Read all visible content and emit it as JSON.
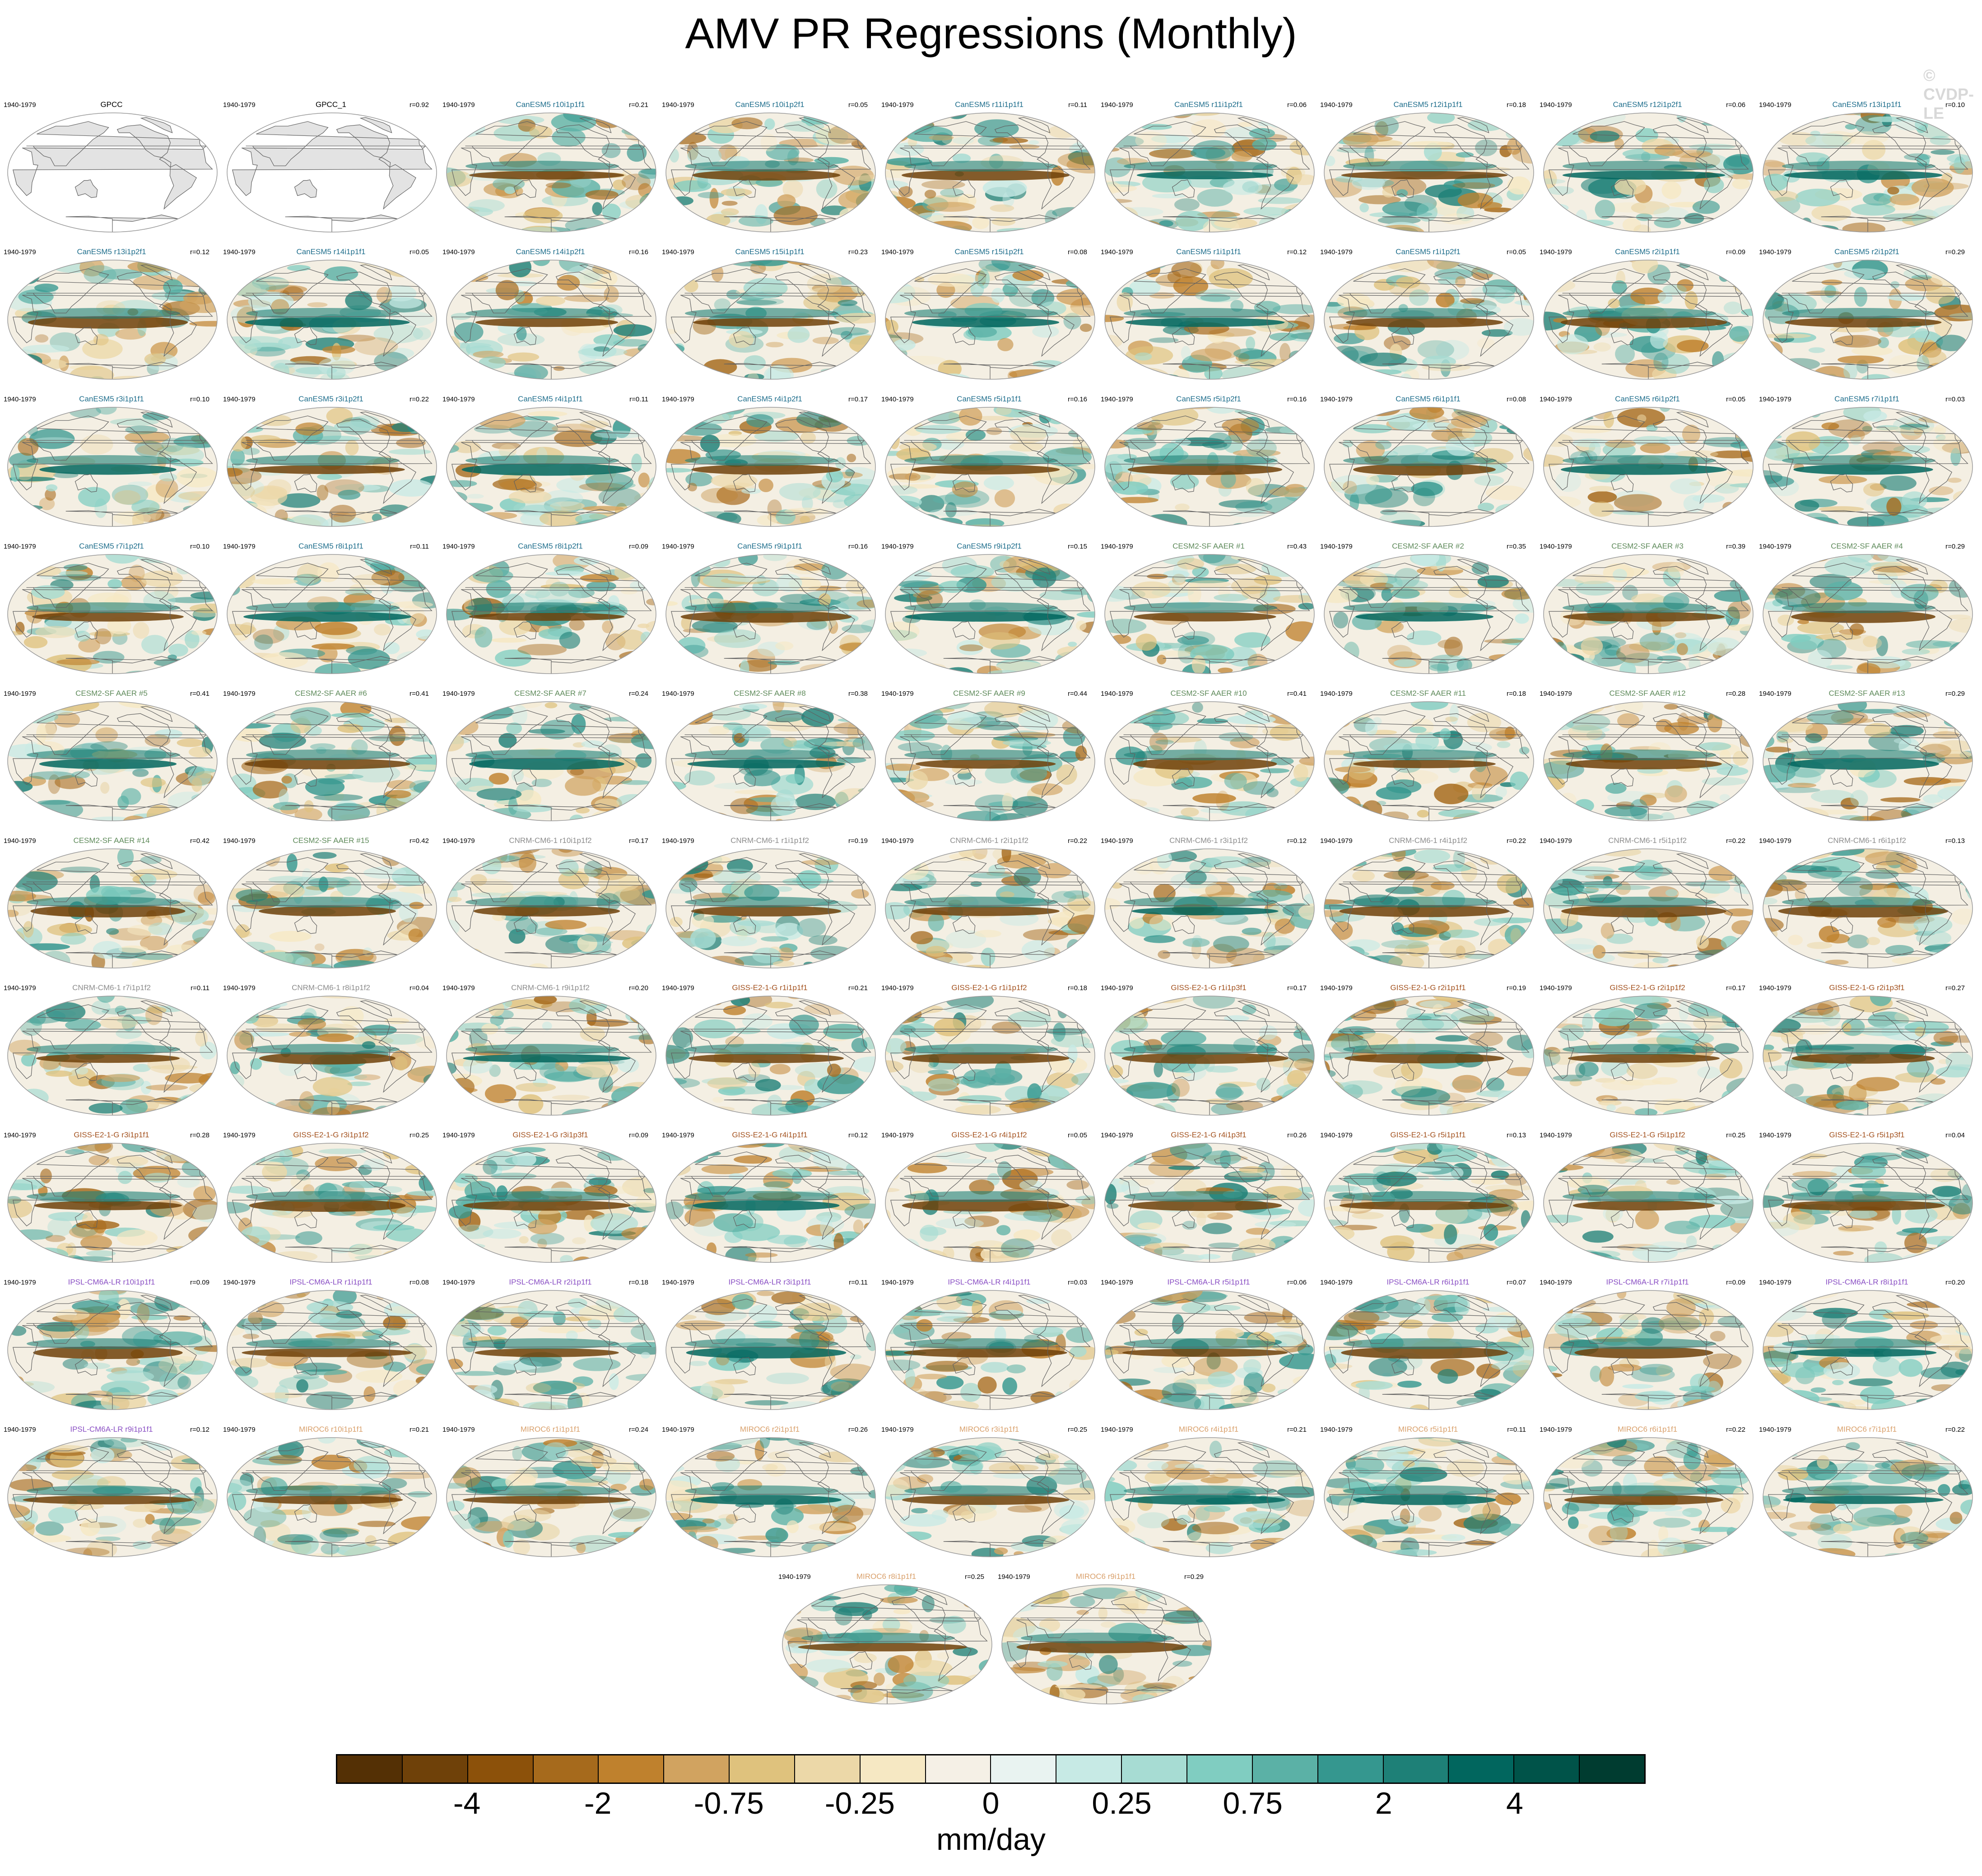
{
  "title": "AMV PR Regressions (Monthly)",
  "watermark": "© CVDP-LE",
  "period": "1940-1979",
  "panels": [
    {
      "name": "GPCC",
      "r": "",
      "group": "obs",
      "obs": true
    },
    {
      "name": "GPCC_1",
      "r": "r=0.92",
      "group": "obs",
      "obs": true
    },
    {
      "name": "CanESM5 r10i1p1f1",
      "r": "r=0.21",
      "group": "canesm5"
    },
    {
      "name": "CanESM5 r10i1p2f1",
      "r": "r=0.05",
      "group": "canesm5"
    },
    {
      "name": "CanESM5 r11i1p1f1",
      "r": "r=0.11",
      "group": "canesm5"
    },
    {
      "name": "CanESM5 r11i1p2f1",
      "r": "r=0.06",
      "group": "canesm5"
    },
    {
      "name": "CanESM5 r12i1p1f1",
      "r": "r=0.18",
      "group": "canesm5"
    },
    {
      "name": "CanESM5 r12i1p2f1",
      "r": "r=0.06",
      "group": "canesm5"
    },
    {
      "name": "CanESM5 r13i1p1f1",
      "r": "r=0.10",
      "group": "canesm5"
    },
    {
      "name": "CanESM5 r13i1p2f1",
      "r": "r=0.12",
      "group": "canesm5"
    },
    {
      "name": "CanESM5 r14i1p1f1",
      "r": "r=0.05",
      "group": "canesm5"
    },
    {
      "name": "CanESM5 r14i1p2f1",
      "r": "r=0.16",
      "group": "canesm5"
    },
    {
      "name": "CanESM5 r15i1p1f1",
      "r": "r=0.23",
      "group": "canesm5"
    },
    {
      "name": "CanESM5 r15i1p2f1",
      "r": "r=0.08",
      "group": "canesm5"
    },
    {
      "name": "CanESM5 r1i1p1f1",
      "r": "r=0.12",
      "group": "canesm5"
    },
    {
      "name": "CanESM5 r1i1p2f1",
      "r": "r=0.05",
      "group": "canesm5"
    },
    {
      "name": "CanESM5 r2i1p1f1",
      "r": "r=0.09",
      "group": "canesm5"
    },
    {
      "name": "CanESM5 r2i1p2f1",
      "r": "r=0.29",
      "group": "canesm5"
    },
    {
      "name": "CanESM5 r3i1p1f1",
      "r": "r=0.10",
      "group": "canesm5"
    },
    {
      "name": "CanESM5 r3i1p2f1",
      "r": "r=0.22",
      "group": "canesm5"
    },
    {
      "name": "CanESM5 r4i1p1f1",
      "r": "r=0.11",
      "group": "canesm5"
    },
    {
      "name": "CanESM5 r4i1p2f1",
      "r": "r=0.17",
      "group": "canesm5"
    },
    {
      "name": "CanESM5 r5i1p1f1",
      "r": "r=0.16",
      "group": "canesm5"
    },
    {
      "name": "CanESM5 r5i1p2f1",
      "r": "r=0.16",
      "group": "canesm5"
    },
    {
      "name": "CanESM5 r6i1p1f1",
      "r": "r=0.08",
      "group": "canesm5"
    },
    {
      "name": "CanESM5 r6i1p2f1",
      "r": "r=0.05",
      "group": "canesm5"
    },
    {
      "name": "CanESM5 r7i1p1f1",
      "r": "r=0.03",
      "group": "canesm5"
    },
    {
      "name": "CanESM5 r7i1p2f1",
      "r": "r=0.10",
      "group": "canesm5"
    },
    {
      "name": "CanESM5 r8i1p1f1",
      "r": "r=0.11",
      "group": "canesm5"
    },
    {
      "name": "CanESM5 r8i1p2f1",
      "r": "r=0.09",
      "group": "canesm5"
    },
    {
      "name": "CanESM5 r9i1p1f1",
      "r": "r=0.16",
      "group": "canesm5"
    },
    {
      "name": "CanESM5 r9i1p2f1",
      "r": "r=0.15",
      "group": "canesm5"
    },
    {
      "name": "CESM2-SF AAER #1",
      "r": "r=0.43",
      "group": "cesm2"
    },
    {
      "name": "CESM2-SF AAER #2",
      "r": "r=0.35",
      "group": "cesm2"
    },
    {
      "name": "CESM2-SF AAER #3",
      "r": "r=0.39",
      "group": "cesm2"
    },
    {
      "name": "CESM2-SF AAER #4",
      "r": "r=0.29",
      "group": "cesm2"
    },
    {
      "name": "CESM2-SF AAER #5",
      "r": "r=0.41",
      "group": "cesm2"
    },
    {
      "name": "CESM2-SF AAER #6",
      "r": "r=0.41",
      "group": "cesm2"
    },
    {
      "name": "CESM2-SF AAER #7",
      "r": "r=0.24",
      "group": "cesm2"
    },
    {
      "name": "CESM2-SF AAER #8",
      "r": "r=0.38",
      "group": "cesm2"
    },
    {
      "name": "CESM2-SF AAER #9",
      "r": "r=0.44",
      "group": "cesm2"
    },
    {
      "name": "CESM2-SF AAER #10",
      "r": "r=0.41",
      "group": "cesm2"
    },
    {
      "name": "CESM2-SF AAER #11",
      "r": "r=0.18",
      "group": "cesm2"
    },
    {
      "name": "CESM2-SF AAER #12",
      "r": "r=0.28",
      "group": "cesm2"
    },
    {
      "name": "CESM2-SF AAER #13",
      "r": "r=0.29",
      "group": "cesm2"
    },
    {
      "name": "CESM2-SF AAER #14",
      "r": "r=0.42",
      "group": "cesm2"
    },
    {
      "name": "CESM2-SF AAER #15",
      "r": "r=0.42",
      "group": "cesm2"
    },
    {
      "name": "CNRM-CM6-1 r10i1p1f2",
      "r": "r=0.17",
      "group": "cnrm"
    },
    {
      "name": "CNRM-CM6-1 r1i1p1f2",
      "r": "r=0.19",
      "group": "cnrm"
    },
    {
      "name": "CNRM-CM6-1 r2i1p1f2",
      "r": "r=0.22",
      "group": "cnrm"
    },
    {
      "name": "CNRM-CM6-1 r3i1p1f2",
      "r": "r=0.12",
      "group": "cnrm"
    },
    {
      "name": "CNRM-CM6-1 r4i1p1f2",
      "r": "r=0.22",
      "group": "cnrm"
    },
    {
      "name": "CNRM-CM6-1 r5i1p1f2",
      "r": "r=0.22",
      "group": "cnrm"
    },
    {
      "name": "CNRM-CM6-1 r6i1p1f2",
      "r": "r=0.13",
      "group": "cnrm"
    },
    {
      "name": "CNRM-CM6-1 r7i1p1f2",
      "r": "r=0.11",
      "group": "cnrm"
    },
    {
      "name": "CNRM-CM6-1 r8i1p1f2",
      "r": "r=0.04",
      "group": "cnrm"
    },
    {
      "name": "CNRM-CM6-1 r9i1p1f2",
      "r": "r=0.20",
      "group": "cnrm"
    },
    {
      "name": "GISS-E2-1-G r1i1p1f1",
      "r": "r=0.21",
      "group": "giss"
    },
    {
      "name": "GISS-E2-1-G r1i1p1f2",
      "r": "r=0.18",
      "group": "giss"
    },
    {
      "name": "GISS-E2-1-G r1i1p3f1",
      "r": "r=0.17",
      "group": "giss"
    },
    {
      "name": "GISS-E2-1-G r2i1p1f1",
      "r": "r=0.19",
      "group": "giss"
    },
    {
      "name": "GISS-E2-1-G r2i1p1f2",
      "r": "r=0.17",
      "group": "giss"
    },
    {
      "name": "GISS-E2-1-G r2i1p3f1",
      "r": "r=0.27",
      "group": "giss"
    },
    {
      "name": "GISS-E2-1-G r3i1p1f1",
      "r": "r=0.28",
      "group": "giss"
    },
    {
      "name": "GISS-E2-1-G r3i1p1f2",
      "r": "r=0.25",
      "group": "giss"
    },
    {
      "name": "GISS-E2-1-G r3i1p3f1",
      "r": "r=0.09",
      "group": "giss"
    },
    {
      "name": "GISS-E2-1-G r4i1p1f1",
      "r": "r=0.12",
      "group": "giss"
    },
    {
      "name": "GISS-E2-1-G r4i1p1f2",
      "r": "r=0.05",
      "group": "giss"
    },
    {
      "name": "GISS-E2-1-G r4i1p3f1",
      "r": "r=0.26",
      "group": "giss"
    },
    {
      "name": "GISS-E2-1-G r5i1p1f1",
      "r": "r=0.13",
      "group": "giss"
    },
    {
      "name": "GISS-E2-1-G r5i1p1f2",
      "r": "r=0.25",
      "group": "giss"
    },
    {
      "name": "GISS-E2-1-G r5i1p3f1",
      "r": "r=0.04",
      "group": "giss"
    },
    {
      "name": "IPSL-CM6A-LR r10i1p1f1",
      "r": "r=0.09",
      "group": "ipsl"
    },
    {
      "name": "IPSL-CM6A-LR r1i1p1f1",
      "r": "r=0.08",
      "group": "ipsl"
    },
    {
      "name": "IPSL-CM6A-LR r2i1p1f1",
      "r": "r=0.18",
      "group": "ipsl"
    },
    {
      "name": "IPSL-CM6A-LR r3i1p1f1",
      "r": "r=0.11",
      "group": "ipsl"
    },
    {
      "name": "IPSL-CM6A-LR r4i1p1f1",
      "r": "r=0.03",
      "group": "ipsl"
    },
    {
      "name": "IPSL-CM6A-LR r5i1p1f1",
      "r": "r=0.06",
      "group": "ipsl"
    },
    {
      "name": "IPSL-CM6A-LR r6i1p1f1",
      "r": "r=0.07",
      "group": "ipsl"
    },
    {
      "name": "IPSL-CM6A-LR r7i1p1f1",
      "r": "r=0.09",
      "group": "ipsl"
    },
    {
      "name": "IPSL-CM6A-LR r8i1p1f1",
      "r": "r=0.20",
      "group": "ipsl"
    },
    {
      "name": "IPSL-CM6A-LR r9i1p1f1",
      "r": "r=0.12",
      "group": "ipsl"
    },
    {
      "name": "MIROC6 r10i1p1f1",
      "r": "r=0.21",
      "group": "miroc6"
    },
    {
      "name": "MIROC6 r1i1p1f1",
      "r": "r=0.24",
      "group": "miroc6"
    },
    {
      "name": "MIROC6 r2i1p1f1",
      "r": "r=0.26",
      "group": "miroc6"
    },
    {
      "name": "MIROC6 r3i1p1f1",
      "r": "r=0.25",
      "group": "miroc6"
    },
    {
      "name": "MIROC6 r4i1p1f1",
      "r": "r=0.21",
      "group": "miroc6"
    },
    {
      "name": "MIROC6 r5i1p1f1",
      "r": "r=0.11",
      "group": "miroc6"
    },
    {
      "name": "MIROC6 r6i1p1f1",
      "r": "r=0.22",
      "group": "miroc6"
    },
    {
      "name": "MIROC6 r7i1p1f1",
      "r": "r=0.22",
      "group": "miroc6"
    },
    {
      "name": "MIROC6 r8i1p1f1",
      "r": "r=0.25",
      "group": "miroc6"
    },
    {
      "name": "MIROC6 r9i1p1f1",
      "r": "r=0.29",
      "group": "miroc6"
    }
  ],
  "group_colors": {
    "obs": "#000000",
    "canesm5": "#1f6e8c",
    "cesm2": "#5e8a5a",
    "cnrm": "#8c8c8c",
    "giss": "#a3521f",
    "ipsl": "#8a4fc4",
    "miroc6": "#d9a06b"
  },
  "colorbar": {
    "colors": [
      "#543005",
      "#6f4109",
      "#8c510a",
      "#a66a1c",
      "#bf812d",
      "#d1a360",
      "#dfc27d",
      "#ecd8a8",
      "#f6e8c3",
      "#f5f0e6",
      "#e9f3f1",
      "#c7eae5",
      "#a7dcd3",
      "#80cdc1",
      "#5bb1a6",
      "#35978f",
      "#1e8077",
      "#01665e",
      "#005349",
      "#003c30"
    ],
    "tick_labels": [
      "-4",
      "-2",
      "-0.75",
      "-0.25",
      "0",
      "0.25",
      "0.75",
      "2",
      "4"
    ],
    "units": "mm/day"
  },
  "map_colors": {
    "land": "#e3e3e3",
    "coast": "#606060",
    "dry": "#a8681c",
    "wet": "#1a8a7c"
  }
}
